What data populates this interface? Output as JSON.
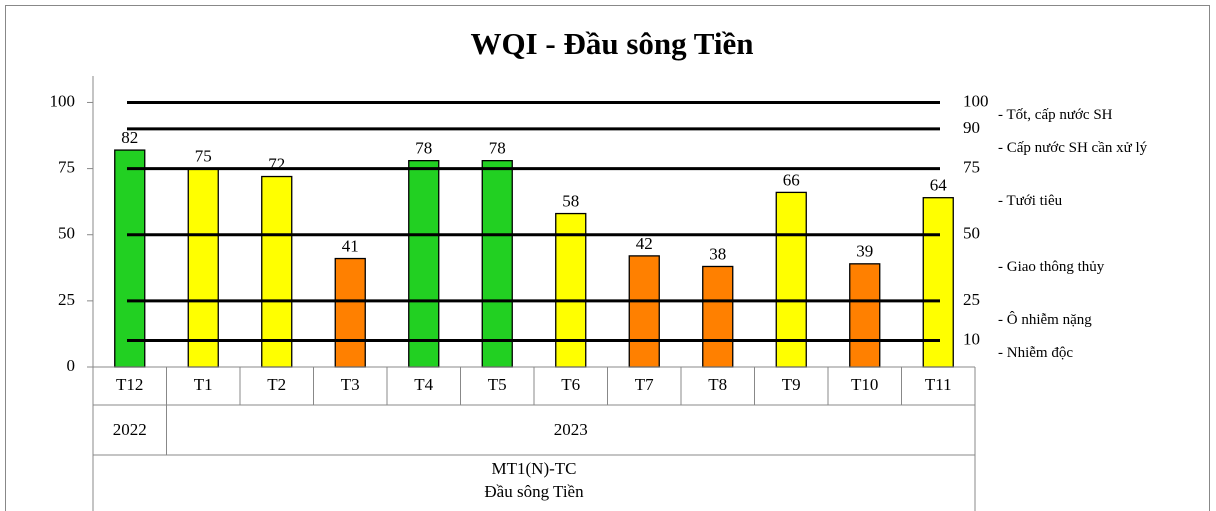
{
  "chart_data": {
    "type": "bar",
    "title": "WQI - Đầu sông Tiền",
    "categories": [
      "T12",
      "T1",
      "T2",
      "T3",
      "T4",
      "T5",
      "T6",
      "T7",
      "T8",
      "T9",
      "T10",
      "T11"
    ],
    "values": [
      82,
      75,
      72,
      41,
      78,
      78,
      58,
      42,
      38,
      66,
      39,
      64
    ],
    "colors": [
      "#22d022",
      "#ffff00",
      "#ffff00",
      "#ff8000",
      "#22d022",
      "#22d022",
      "#ffff00",
      "#ff8000",
      "#ff8000",
      "#ffff00",
      "#ff8000",
      "#ffff00"
    ],
    "ylim": [
      0,
      110
    ],
    "yticks": [
      0,
      25,
      50,
      75,
      100
    ],
    "y2lim": [
      0,
      110
    ],
    "y2ticks": [
      10,
      25,
      50,
      75,
      90,
      100
    ],
    "zones": [
      {
        "name": "- Tốt, cấp nước SH",
        "range": [
          90,
          100
        ]
      },
      {
        "name": "- Cấp nước SH cần xử lý",
        "range": [
          75,
          90
        ]
      },
      {
        "name": "- Tưới tiêu",
        "range": [
          50,
          75
        ]
      },
      {
        "name": "- Giao thông thủy",
        "range": [
          25,
          50
        ]
      },
      {
        "name": "- Ô nhiễm nặng",
        "range": [
          10,
          25
        ]
      },
      {
        "name": "- Nhiễm độc",
        "range": [
          0,
          10
        ]
      }
    ],
    "x_groups": [
      {
        "label": "2022",
        "count": 1
      },
      {
        "label": "2023",
        "count": 11
      }
    ],
    "x_axis_label": [
      "MT1(N)-TC",
      "Đầu sông Tiền"
    ]
  }
}
